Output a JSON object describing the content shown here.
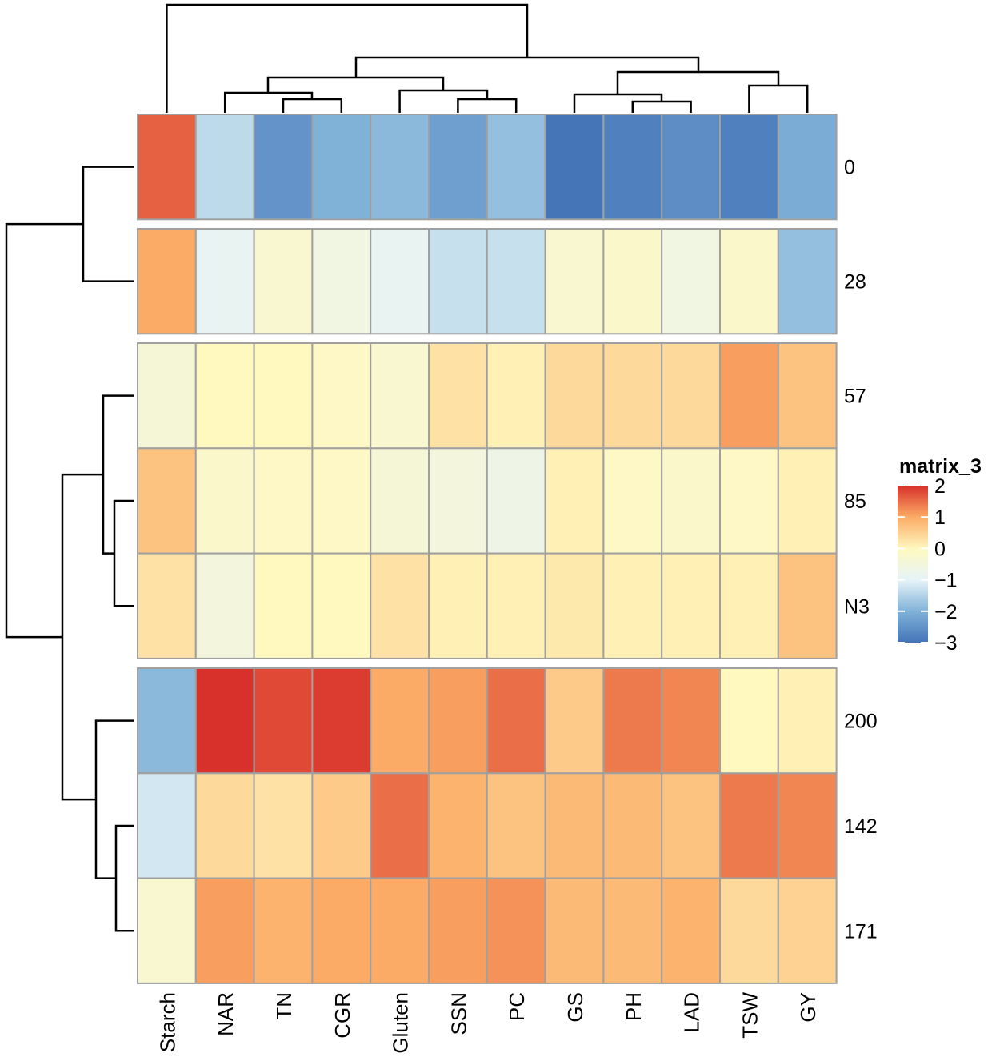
{
  "chart_data": {
    "type": "heatmap",
    "title": "",
    "columns": [
      "Starch",
      "NAR",
      "TN",
      "CGR",
      "Gluten",
      "SSN",
      "PC",
      "GS",
      "PH",
      "LAD",
      "TSW",
      "GY"
    ],
    "rows": [
      "0",
      "28",
      "57",
      "85",
      "N3",
      "200",
      "142",
      "171"
    ],
    "row_groups": [
      [
        "0"
      ],
      [
        "28"
      ],
      [
        "57",
        "85",
        "N3"
      ],
      [
        "200",
        "142",
        "171"
      ]
    ],
    "values": [
      [
        1.6,
        -1.4,
        -2.5,
        -2.0,
        -1.9,
        -2.3,
        -1.8,
        -3.0,
        -2.8,
        -2.6,
        -2.8,
        -2.1
      ],
      [
        1.0,
        -0.9,
        -0.3,
        -0.6,
        -0.9,
        -1.3,
        -1.3,
        -0.3,
        -0.2,
        -0.6,
        -0.2,
        -1.8
      ],
      [
        -0.4,
        0.0,
        0.0,
        -0.1,
        -0.3,
        0.3,
        0.1,
        0.4,
        0.4,
        0.4,
        1.1,
        0.7
      ],
      [
        0.7,
        -0.2,
        -0.1,
        -0.1,
        -0.4,
        -0.5,
        -0.7,
        0.1,
        -0.1,
        -0.2,
        -0.1,
        0.1
      ],
      [
        0.3,
        -0.5,
        0.0,
        0.0,
        0.3,
        0.1,
        0.1,
        0.2,
        0.1,
        0.1,
        0.1,
        0.7
      ],
      [
        -1.9,
        2.0,
        1.8,
        1.9,
        1.0,
        1.1,
        1.5,
        0.6,
        1.4,
        1.3,
        0.0,
        0.1
      ],
      [
        -1.2,
        0.4,
        0.3,
        0.6,
        1.5,
        0.9,
        0.7,
        0.8,
        0.8,
        0.7,
        1.4,
        1.3
      ],
      [
        -0.3,
        1.1,
        0.9,
        1.0,
        1.0,
        1.1,
        1.2,
        0.8,
        0.8,
        0.9,
        0.4,
        0.5
      ]
    ],
    "legend": {
      "title": "matrix_3",
      "ticks": [
        "2",
        "1",
        "0",
        "−1",
        "−2",
        "−3"
      ],
      "range": [
        -3,
        2
      ],
      "placement": "right",
      "colors": {
        "-3": "#4574b7",
        "-2": "#80b2d8",
        "-1": "#e6f4f8",
        "0": "#fff8bf",
        "1": "#fbab65",
        "2": "#d8302a"
      }
    },
    "column_dendrogram": "yes",
    "row_dendrogram": "yes"
  }
}
